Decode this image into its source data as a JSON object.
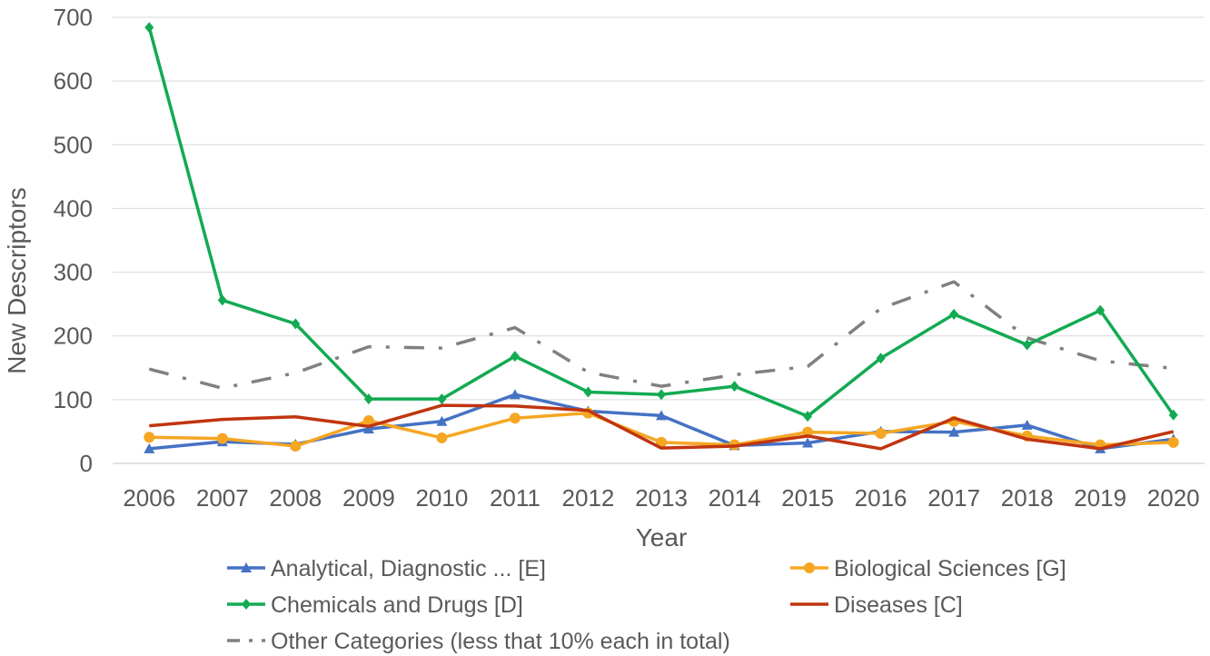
{
  "chart_data": {
    "type": "line",
    "title": "",
    "xlabel": "Year",
    "ylabel": "New Descriptors",
    "ylim": [
      0,
      700
    ],
    "yticks": [
      0,
      100,
      200,
      300,
      400,
      500,
      600,
      700
    ],
    "grid": true,
    "legend_position": "bottom",
    "categories": [
      "2006",
      "2007",
      "2008",
      "2009",
      "2010",
      "2011",
      "2012",
      "2013",
      "2014",
      "2015",
      "2016",
      "2017",
      "2018",
      "2019",
      "2020"
    ],
    "series": [
      {
        "name": "Analytical, Diagnostic ... [E]",
        "color": "#4472c4",
        "marker": "triangle",
        "dash": "solid",
        "values": [
          23,
          34,
          30,
          54,
          66,
          108,
          82,
          75,
          28,
          32,
          50,
          49,
          60,
          23,
          38
        ]
      },
      {
        "name": "Biological Sciences [G]",
        "color": "#f5a623",
        "marker": "circle",
        "dash": "solid",
        "values": [
          41,
          39,
          27,
          67,
          40,
          71,
          79,
          33,
          29,
          49,
          47,
          66,
          43,
          29,
          33
        ]
      },
      {
        "name": "Chemicals and Drugs [D]",
        "color": "#13aa52",
        "marker": "diamond",
        "dash": "solid",
        "values": [
          684,
          256,
          219,
          101,
          101,
          168,
          112,
          108,
          121,
          74,
          165,
          234,
          186,
          240,
          76
        ]
      },
      {
        "name": "Diseases [C]",
        "color": "#c0350f",
        "marker": "none",
        "dash": "solid",
        "values": [
          59,
          69,
          73,
          58,
          91,
          90,
          83,
          24,
          27,
          43,
          23,
          71,
          38,
          23,
          50
        ]
      },
      {
        "name": "Other Categories (less that 10% each in total)",
        "color": "#808080",
        "marker": "none",
        "dash": "dashdot",
        "values": [
          148,
          118,
          142,
          183,
          181,
          213,
          143,
          121,
          139,
          152,
          243,
          285,
          197,
          161,
          149
        ]
      }
    ]
  }
}
